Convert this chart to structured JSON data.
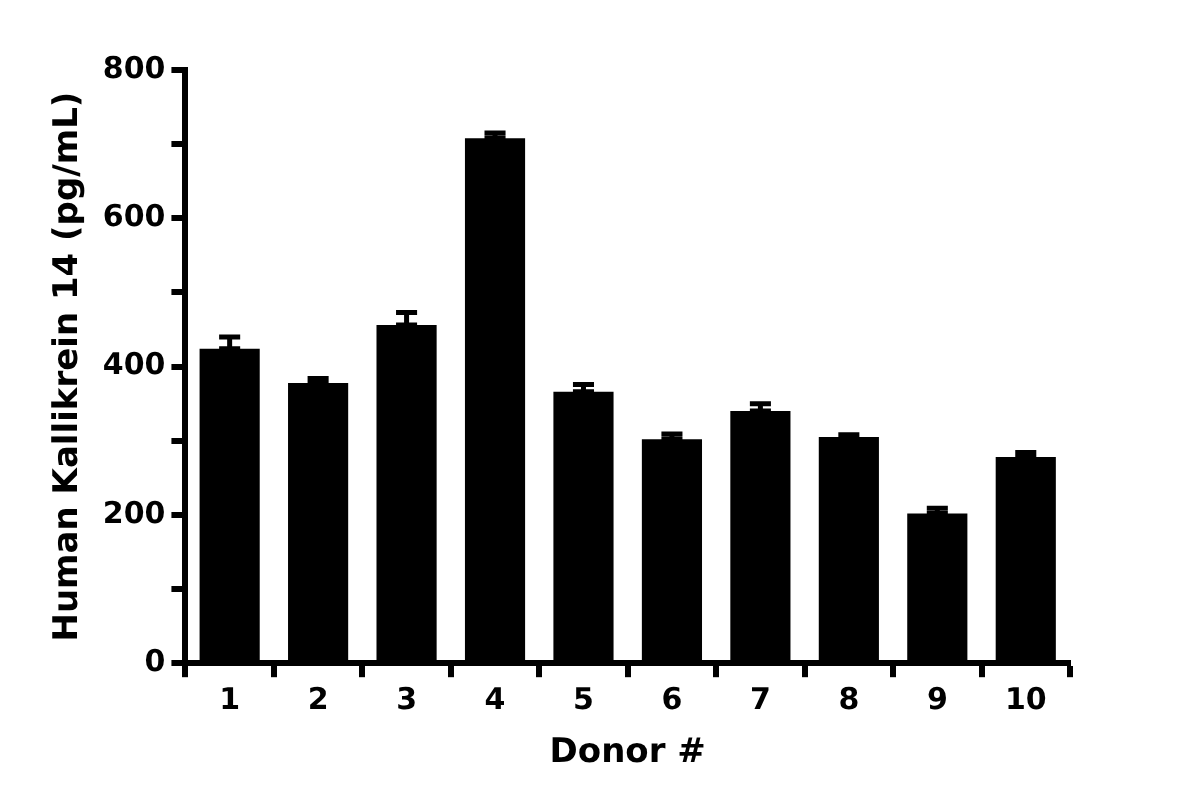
{
  "chart_data": {
    "type": "bar",
    "xlabel": "Donor #",
    "ylabel": "Human Kallikrein 14 (pg/mL)",
    "categories": [
      "1",
      "2",
      "3",
      "4",
      "5",
      "6",
      "7",
      "8",
      "9",
      "10"
    ],
    "values": [
      424,
      378,
      456,
      708,
      366,
      302,
      340,
      305,
      202,
      278
    ],
    "errors": [
      [
        424,
        440
      ],
      [
        378,
        384
      ],
      [
        456,
        473
      ],
      [
        708,
        715
      ],
      [
        366,
        376
      ],
      [
        302,
        309
      ],
      [
        340,
        350
      ],
      [
        305,
        308
      ],
      [
        202,
        209
      ],
      [
        278,
        284
      ]
    ],
    "color": "#000000",
    "ylim": [
      0,
      800
    ],
    "yticks": [
      0,
      {
        "value": 100,
        "label": null
      },
      200,
      {
        "value": 300,
        "label": null
      },
      400,
      {
        "value": 500,
        "label": null
      },
      600,
      {
        "value": 700,
        "label": null
      },
      800
    ],
    "grid": false,
    "legend": false
  }
}
